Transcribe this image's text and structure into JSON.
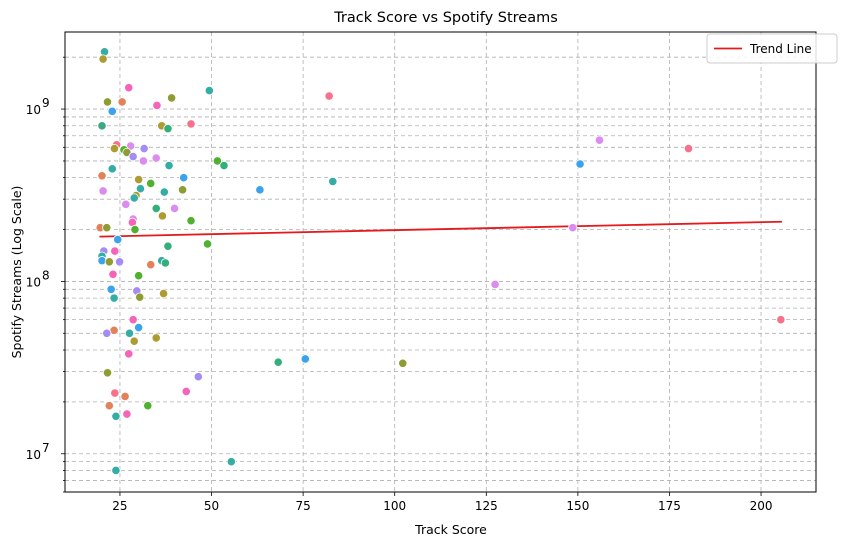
{
  "chart_data": {
    "type": "scatter",
    "title": "Track Score vs Spotify Streams",
    "xlabel": "Track Score",
    "ylabel": "Spotify Streams (Log Scale)",
    "xlim": [
      10,
      215
    ],
    "ylim": [
      6000000,
      2800000000
    ],
    "yscale": "log",
    "xticks": [
      25,
      50,
      75,
      100,
      125,
      150,
      175,
      200
    ],
    "xtick_labels": [
      "25",
      "50",
      "75",
      "100",
      "125",
      "150",
      "175",
      "200"
    ],
    "yticks": [
      10000000,
      100000000,
      1000000000
    ],
    "ytick_labels": [
      "10",
      "10",
      "10"
    ],
    "ytick_exponents": [
      "7",
      "8",
      "9"
    ],
    "grid": true,
    "legend_position": "top-right",
    "trend_line": {
      "name": "Trend Line",
      "color": "#e41a1c",
      "x": [
        19.4,
        205.7
      ],
      "y": [
        182000000,
        222000000
      ]
    },
    "points": [
      {
        "x": 20.8,
        "y": 2150000000,
        "color": "#36ada4"
      },
      {
        "x": 20.4,
        "y": 1950000000,
        "color": "#ad9c31"
      },
      {
        "x": 27.4,
        "y": 1330000000,
        "color": "#f564b9"
      },
      {
        "x": 49.4,
        "y": 1280000000,
        "color": "#36ada4"
      },
      {
        "x": 82.1,
        "y": 1190000000,
        "color": "#f77189"
      },
      {
        "x": 39.1,
        "y": 1160000000,
        "color": "#8e9c31"
      },
      {
        "x": 21.6,
        "y": 1100000000,
        "color": "#8e9c31"
      },
      {
        "x": 25.6,
        "y": 1100000000,
        "color": "#e1825a"
      },
      {
        "x": 35.1,
        "y": 1050000000,
        "color": "#f564b9"
      },
      {
        "x": 22.9,
        "y": 970000000,
        "color": "#3ba3ec"
      },
      {
        "x": 44.4,
        "y": 820000000,
        "color": "#f77189"
      },
      {
        "x": 20.1,
        "y": 800000000,
        "color": "#3aa883"
      },
      {
        "x": 36.4,
        "y": 800000000,
        "color": "#ad9c31"
      },
      {
        "x": 38.1,
        "y": 770000000,
        "color": "#33b07a"
      },
      {
        "x": 155.9,
        "y": 660000000,
        "color": "#dc8bef"
      },
      {
        "x": 24.1,
        "y": 620000000,
        "color": "#f77189"
      },
      {
        "x": 27.9,
        "y": 610000000,
        "color": "#dc8bef"
      },
      {
        "x": 23.5,
        "y": 590000000,
        "color": "#ad9c31"
      },
      {
        "x": 31.6,
        "y": 590000000,
        "color": "#a48cf4"
      },
      {
        "x": 26.1,
        "y": 580000000,
        "color": "#50b131"
      },
      {
        "x": 180.2,
        "y": 590000000,
        "color": "#f77189"
      },
      {
        "x": 26.9,
        "y": 560000000,
        "color": "#8e9c31"
      },
      {
        "x": 28.6,
        "y": 530000000,
        "color": "#a48cf4"
      },
      {
        "x": 34.9,
        "y": 520000000,
        "color": "#dc8bef"
      },
      {
        "x": 31.4,
        "y": 500000000,
        "color": "#dc8bef"
      },
      {
        "x": 51.6,
        "y": 500000000,
        "color": "#50b131"
      },
      {
        "x": 150.6,
        "y": 480000000,
        "color": "#3ba3ec"
      },
      {
        "x": 53.4,
        "y": 470000000,
        "color": "#33b07a"
      },
      {
        "x": 38.4,
        "y": 470000000,
        "color": "#36ada4"
      },
      {
        "x": 22.9,
        "y": 450000000,
        "color": "#36ada4"
      },
      {
        "x": 20.1,
        "y": 410000000,
        "color": "#e1825a"
      },
      {
        "x": 42.4,
        "y": 400000000,
        "color": "#3ba3ec"
      },
      {
        "x": 30.1,
        "y": 390000000,
        "color": "#ad9c31"
      },
      {
        "x": 83.1,
        "y": 380000000,
        "color": "#36ada4"
      },
      {
        "x": 33.4,
        "y": 370000000,
        "color": "#50b131"
      },
      {
        "x": 30.6,
        "y": 345000000,
        "color": "#36ada4"
      },
      {
        "x": 42.1,
        "y": 340000000,
        "color": "#8e9c31"
      },
      {
        "x": 63.2,
        "y": 340000000,
        "color": "#3ba3ec"
      },
      {
        "x": 20.4,
        "y": 335000000,
        "color": "#dc8bef"
      },
      {
        "x": 37.1,
        "y": 330000000,
        "color": "#36ada4"
      },
      {
        "x": 29.4,
        "y": 315000000,
        "color": "#ad9c31"
      },
      {
        "x": 28.9,
        "y": 305000000,
        "color": "#36ada4"
      },
      {
        "x": 26.6,
        "y": 280000000,
        "color": "#dc8bef"
      },
      {
        "x": 34.9,
        "y": 265000000,
        "color": "#33b07a"
      },
      {
        "x": 39.9,
        "y": 265000000,
        "color": "#dc8bef"
      },
      {
        "x": 36.6,
        "y": 240000000,
        "color": "#ad9c31"
      },
      {
        "x": 28.6,
        "y": 230000000,
        "color": "#dc8bef"
      },
      {
        "x": 44.4,
        "y": 225000000,
        "color": "#50b131"
      },
      {
        "x": 28.4,
        "y": 220000000,
        "color": "#f564b9"
      },
      {
        "x": 19.6,
        "y": 205000000,
        "color": "#e1825a"
      },
      {
        "x": 21.4,
        "y": 205000000,
        "color": "#8e9c31"
      },
      {
        "x": 29.1,
        "y": 200000000,
        "color": "#50b131"
      },
      {
        "x": 148.6,
        "y": 205000000,
        "color": "#dc8bef"
      },
      {
        "x": 24.4,
        "y": 175000000,
        "color": "#3ba3ec"
      },
      {
        "x": 48.9,
        "y": 165000000,
        "color": "#50b131"
      },
      {
        "x": 38.1,
        "y": 160000000,
        "color": "#33b07a"
      },
      {
        "x": 20.6,
        "y": 150000000,
        "color": "#a48cf4"
      },
      {
        "x": 23.6,
        "y": 150000000,
        "color": "#f564b9"
      },
      {
        "x": 20.1,
        "y": 140000000,
        "color": "#36ada4"
      },
      {
        "x": 20.1,
        "y": 132000000,
        "color": "#3ba3ec"
      },
      {
        "x": 22.1,
        "y": 130000000,
        "color": "#8e9c31"
      },
      {
        "x": 24.9,
        "y": 130000000,
        "color": "#a48cf4"
      },
      {
        "x": 36.4,
        "y": 132000000,
        "color": "#36ada4"
      },
      {
        "x": 37.4,
        "y": 128000000,
        "color": "#33b07a"
      },
      {
        "x": 33.4,
        "y": 125000000,
        "color": "#e1825a"
      },
      {
        "x": 23.1,
        "y": 110000000,
        "color": "#f564b9"
      },
      {
        "x": 30.1,
        "y": 108000000,
        "color": "#50b131"
      },
      {
        "x": 127.4,
        "y": 96000000,
        "color": "#dc8bef"
      },
      {
        "x": 22.6,
        "y": 90000000,
        "color": "#3ba3ec"
      },
      {
        "x": 29.6,
        "y": 88000000,
        "color": "#a48cf4"
      },
      {
        "x": 36.9,
        "y": 85000000,
        "color": "#ad9c31"
      },
      {
        "x": 23.4,
        "y": 80000000,
        "color": "#36ada4"
      },
      {
        "x": 30.4,
        "y": 81000000,
        "color": "#8e9c31"
      },
      {
        "x": 28.6,
        "y": 60000000,
        "color": "#f564b9"
      },
      {
        "x": 205.4,
        "y": 60000000,
        "color": "#f77189"
      },
      {
        "x": 30.1,
        "y": 54000000,
        "color": "#3ba3ec"
      },
      {
        "x": 23.4,
        "y": 52000000,
        "color": "#e1825a"
      },
      {
        "x": 21.4,
        "y": 50000000,
        "color": "#a48cf4"
      },
      {
        "x": 27.6,
        "y": 50000000,
        "color": "#36ada4"
      },
      {
        "x": 34.9,
        "y": 47000000,
        "color": "#ad9c31"
      },
      {
        "x": 28.9,
        "y": 45000000,
        "color": "#ad9c31"
      },
      {
        "x": 27.4,
        "y": 38000000,
        "color": "#f564b9"
      },
      {
        "x": 75.6,
        "y": 35500000,
        "color": "#3ba3ec"
      },
      {
        "x": 68.2,
        "y": 34000000,
        "color": "#33b07a"
      },
      {
        "x": 102.2,
        "y": 33500000,
        "color": "#8e9c31"
      },
      {
        "x": 21.6,
        "y": 29500000,
        "color": "#8e9c31"
      },
      {
        "x": 46.4,
        "y": 28000000,
        "color": "#a48cf4"
      },
      {
        "x": 43.1,
        "y": 23000000,
        "color": "#f564b9"
      },
      {
        "x": 23.6,
        "y": 22500000,
        "color": "#f77189"
      },
      {
        "x": 26.4,
        "y": 21500000,
        "color": "#e1825a"
      },
      {
        "x": 22.1,
        "y": 19000000,
        "color": "#e1825a"
      },
      {
        "x": 32.6,
        "y": 19000000,
        "color": "#50b131"
      },
      {
        "x": 23.9,
        "y": 16500000,
        "color": "#36ada4"
      },
      {
        "x": 26.9,
        "y": 17000000,
        "color": "#f564b9"
      },
      {
        "x": 55.4,
        "y": 9000000,
        "color": "#36ada4"
      },
      {
        "x": 23.9,
        "y": 8000000,
        "color": "#36ada4"
      }
    ]
  }
}
